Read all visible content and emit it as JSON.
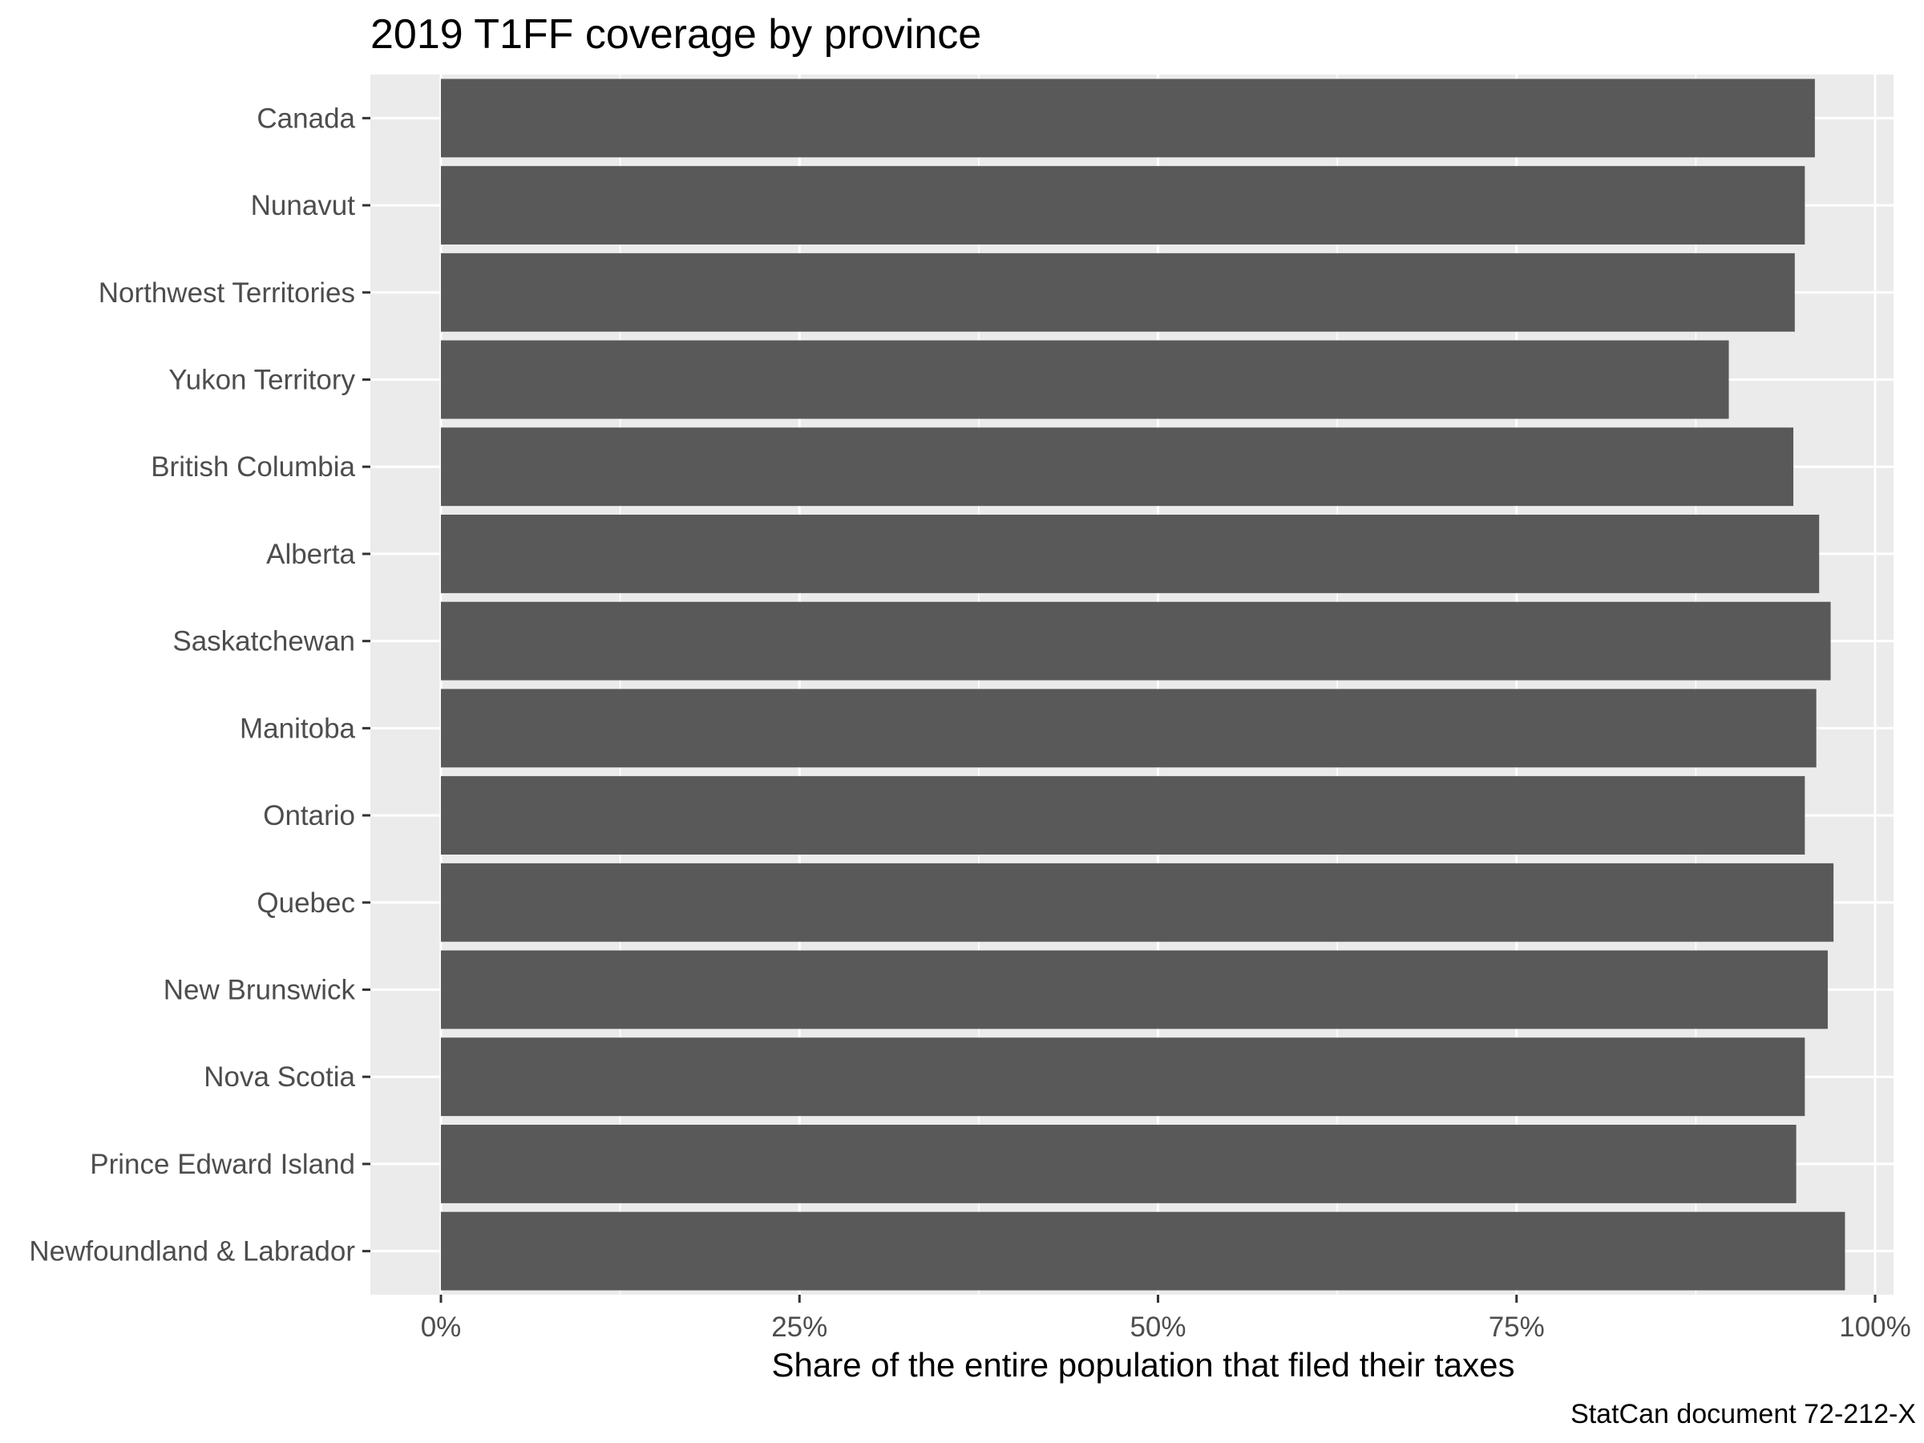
{
  "chart_data": {
    "type": "bar",
    "orientation": "horizontal",
    "title": "2019 T1FF coverage by province",
    "xlabel": "Share of the entire population that filed their taxes",
    "ylabel": "",
    "caption": "StatCan document 72-212-X",
    "xlim": [
      0,
      1
    ],
    "x_ticks": [
      0,
      0.25,
      0.5,
      0.75,
      1.0
    ],
    "x_tick_labels": [
      "0%",
      "25%",
      "50%",
      "75%",
      "100%"
    ],
    "grid": true,
    "legend": "none",
    "colors": {
      "bar": "#595959",
      "panel": "#ebebeb",
      "grid": "#ffffff",
      "axis_text": "#4d4d4d"
    },
    "categories": [
      "Canada",
      "Nunavut",
      "Northwest Territories",
      "Yukon Territory",
      "British Columbia",
      "Alberta",
      "Saskatchewan",
      "Manitoba",
      "Ontario",
      "Quebec",
      "New Brunswick",
      "Nova Scotia",
      "Prince Edward Island",
      "Newfoundland & Labrador"
    ],
    "values": [
      0.958,
      0.951,
      0.944,
      0.898,
      0.943,
      0.961,
      0.969,
      0.959,
      0.951,
      0.971,
      0.967,
      0.951,
      0.945,
      0.979
    ]
  }
}
